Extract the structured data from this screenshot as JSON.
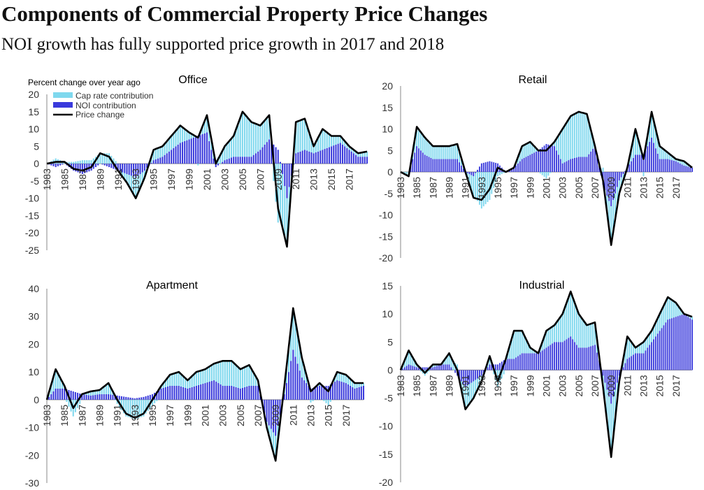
{
  "title": "Components of Commercial Property Price Changes",
  "subtitle": "NOI growth has fully supported price growth in 2017 and 2018",
  "ylabel_note": "Percent change over year ago",
  "legend": [
    "Cap rate contribution",
    "NOI contribution",
    "Price change"
  ],
  "colors": {
    "cap": "#7fd8ee",
    "noi": "#3a3adc",
    "price": "#000000"
  },
  "chart_data": [
    {
      "type": "bar",
      "title": "Office",
      "ylim": [
        -25,
        20
      ],
      "yticks": [
        20,
        15,
        10,
        5,
        0,
        -5,
        -10,
        -15,
        -20,
        -25
      ],
      "xticks": [
        "1983",
        "1985",
        "1987",
        "1989",
        "1991",
        "1993",
        "1995",
        "1997",
        "1999",
        "2001",
        "2003",
        "2005",
        "2007",
        "2009",
        "2011",
        "2013",
        "2015",
        "2017"
      ],
      "x": [
        1983,
        1984,
        1985,
        1986,
        1987,
        1988,
        1989,
        1990,
        1991,
        1992,
        1993,
        1994,
        1995,
        1996,
        1997,
        1998,
        1999,
        2000,
        2001,
        2002,
        2003,
        2004,
        2005,
        2006,
        2007,
        2008,
        2009,
        2010,
        2011,
        2012,
        2013,
        2014,
        2015,
        2016,
        2017,
        2018,
        2019
      ],
      "series": [
        {
          "name": "Price change",
          "values": [
            0,
            0.5,
            0.5,
            -1.5,
            -2,
            -1,
            3,
            2,
            -2,
            -5.5,
            -10,
            -4,
            4,
            5,
            8,
            11,
            9,
            7.5,
            14,
            0,
            5,
            8,
            15,
            12,
            11,
            14,
            -13,
            -24,
            12,
            13,
            5,
            10,
            8,
            8,
            5,
            3,
            3.5
          ]
        },
        {
          "name": "NOI contribution",
          "values": [
            0,
            -1,
            0,
            -2,
            -3,
            -2,
            0,
            -1,
            -2,
            -3,
            -4,
            -2,
            1,
            2,
            4,
            6,
            7,
            8,
            9,
            -1,
            1,
            2,
            2,
            2,
            4,
            7,
            4,
            -10,
            3,
            4,
            3,
            4,
            5,
            6,
            4,
            2,
            2
          ]
        },
        {
          "name": "Cap rate contribution",
          "values": [
            0,
            1.5,
            0.5,
            0.5,
            1,
            1,
            3,
            3,
            0,
            -2.5,
            -6,
            -2,
            3,
            3,
            4,
            5,
            2,
            -0.5,
            5,
            1,
            4,
            6,
            13,
            10,
            7,
            7,
            -17,
            -14,
            9,
            9,
            2,
            6,
            3,
            2,
            1,
            1,
            1.5
          ]
        }
      ]
    },
    {
      "type": "bar",
      "title": "Retail",
      "ylim": [
        -20,
        20
      ],
      "yticks": [
        20,
        15,
        10,
        5,
        0,
        -5,
        -10,
        -15,
        -20
      ],
      "xticks": [
        "1983",
        "1985",
        "1987",
        "1989",
        "1991",
        "1993",
        "1995",
        "1997",
        "1999",
        "2001",
        "2003",
        "2005",
        "2007",
        "2009",
        "2011",
        "2013",
        "2015",
        "2017"
      ],
      "x": [
        1983,
        1984,
        1985,
        1986,
        1987,
        1988,
        1989,
        1990,
        1991,
        1992,
        1993,
        1994,
        1995,
        1996,
        1997,
        1998,
        1999,
        2000,
        2001,
        2002,
        2003,
        2004,
        2005,
        2006,
        2007,
        2008,
        2009,
        2010,
        2011,
        2012,
        2013,
        2014,
        2015,
        2016,
        2017,
        2018,
        2019
      ],
      "series": [
        {
          "name": "Price change",
          "values": [
            0,
            -1,
            10.5,
            8,
            6,
            6,
            6,
            6.5,
            0,
            -6,
            -6.5,
            -4,
            1,
            0,
            1,
            6,
            7,
            5,
            5,
            7,
            10,
            13,
            14,
            13.5,
            6,
            -2,
            -17,
            -5,
            1,
            10,
            3,
            14,
            6,
            4.5,
            3,
            2.5,
            1
          ]
        },
        {
          "name": "NOI contribution",
          "values": [
            0,
            0,
            6,
            4,
            3,
            3,
            3,
            3,
            0,
            -1,
            2,
            2.5,
            2,
            0,
            1,
            3,
            4,
            5,
            6.5,
            6,
            2,
            3,
            3.5,
            3.5,
            6,
            -3,
            -8,
            -2,
            1,
            4,
            4,
            8,
            3,
            3,
            2.5,
            1.5,
            1
          ]
        },
        {
          "name": "Cap rate contribution",
          "values": [
            0,
            -1,
            4.5,
            4,
            3,
            3,
            3,
            3.5,
            0,
            -5,
            -8.5,
            -6.5,
            -1,
            0,
            0,
            3,
            3,
            0,
            -1.5,
            1,
            8,
            10,
            10.5,
            10,
            0,
            1,
            -9,
            -3,
            0,
            6,
            -1,
            6,
            3,
            1.5,
            0.5,
            1,
            0
          ]
        }
      ]
    },
    {
      "type": "bar",
      "title": "Apartment",
      "ylim": [
        -30,
        40
      ],
      "yticks": [
        40,
        30,
        20,
        10,
        0,
        -10,
        -20,
        -30
      ],
      "xticks": [
        "1983",
        "1985",
        "1987",
        "1989",
        "1991",
        "1993",
        "1995",
        "1997",
        "1999",
        "2001",
        "2003",
        "2005",
        "2007",
        "2009",
        "2011",
        "2013",
        "2015",
        "2017"
      ],
      "x": [
        1983,
        1984,
        1985,
        1986,
        1987,
        1988,
        1989,
        1990,
        1991,
        1992,
        1993,
        1994,
        1995,
        1996,
        1997,
        1998,
        1999,
        2000,
        2001,
        2002,
        2003,
        2004,
        2005,
        2006,
        2007,
        2008,
        2009,
        2010,
        2011,
        2012,
        2013,
        2014,
        2015,
        2016,
        2017,
        2018,
        2019
      ],
      "series": [
        {
          "name": "Price change",
          "values": [
            0,
            11,
            5,
            -3,
            2,
            3,
            3.5,
            6,
            0,
            -5,
            -6.5,
            -5,
            0,
            5,
            9,
            10,
            7,
            10,
            11,
            13,
            14,
            14,
            11,
            12.5,
            7,
            -10,
            -22,
            5,
            33,
            15,
            3,
            6,
            3,
            10,
            9,
            6,
            6
          ]
        },
        {
          "name": "NOI contribution",
          "values": [
            0,
            4,
            4,
            3,
            2,
            1.5,
            2,
            2,
            1.5,
            1,
            0.5,
            1,
            2,
            4,
            5,
            5,
            4,
            5,
            6,
            7,
            5,
            5,
            4,
            5,
            5,
            -8,
            -13,
            2,
            18,
            8,
            4,
            5,
            5,
            7,
            6,
            4,
            5
          ]
        },
        {
          "name": "Cap rate contribution",
          "values": [
            0,
            7,
            1,
            -6,
            0,
            1.5,
            1.5,
            4,
            -1.5,
            -6,
            -7,
            -6,
            -2,
            1,
            4,
            5,
            3,
            5,
            5,
            6,
            9,
            9,
            7,
            7.5,
            2,
            -2,
            -9,
            3,
            15,
            7,
            -1,
            1,
            -2,
            3,
            3,
            2,
            1
          ]
        }
      ]
    },
    {
      "type": "bar",
      "title": "Industrial",
      "ylim": [
        -20,
        15
      ],
      "yticks": [
        15,
        10,
        5,
        0,
        -5,
        -10,
        -15,
        -20
      ],
      "xticks": [
        "1983",
        "1985",
        "1987",
        "1989",
        "1991",
        "1993",
        "1995",
        "1997",
        "1999",
        "2001",
        "2003",
        "2005",
        "2007",
        "2009",
        "2011",
        "2013",
        "2015",
        "2017"
      ],
      "x": [
        1983,
        1984,
        1985,
        1986,
        1987,
        1988,
        1989,
        1990,
        1991,
        1992,
        1993,
        1994,
        1995,
        1996,
        1997,
        1998,
        1999,
        2000,
        2001,
        2002,
        2003,
        2004,
        2005,
        2006,
        2007,
        2008,
        2009,
        2010,
        2011,
        2012,
        2013,
        2014,
        2015,
        2016,
        2017,
        2018,
        2019
      ],
      "series": [
        {
          "name": "Price change",
          "values": [
            0,
            3.5,
            1,
            -0.5,
            1,
            1,
            3,
            0,
            -7,
            -5,
            -2,
            2.5,
            -2,
            2,
            7,
            7,
            4,
            3,
            7,
            8,
            10,
            14,
            10,
            8,
            8.5,
            -3,
            -15.5,
            -2,
            6,
            4,
            5,
            7,
            10,
            13,
            12,
            10,
            9.5
          ]
        },
        {
          "name": "NOI contribution",
          "values": [
            0,
            1,
            0.5,
            0.5,
            0.5,
            1,
            1,
            -1,
            -3,
            -2,
            -1,
            1,
            1,
            2,
            2,
            3,
            3,
            3,
            4,
            5,
            5,
            6,
            4,
            4,
            4.5,
            -1,
            -6,
            -1,
            2,
            3,
            3,
            5,
            7,
            9,
            9.5,
            10,
            9
          ]
        },
        {
          "name": "Cap rate contribution",
          "values": [
            0,
            2.5,
            0.5,
            -1,
            0.5,
            0,
            2,
            1,
            -4,
            -3,
            -1,
            1.5,
            -3,
            0,
            5,
            4,
            1,
            0,
            3,
            3,
            5,
            8,
            6,
            4,
            4,
            -2,
            -9.5,
            -1,
            4,
            1,
            2,
            2,
            3,
            4,
            2.5,
            0,
            0.5
          ]
        }
      ]
    }
  ]
}
